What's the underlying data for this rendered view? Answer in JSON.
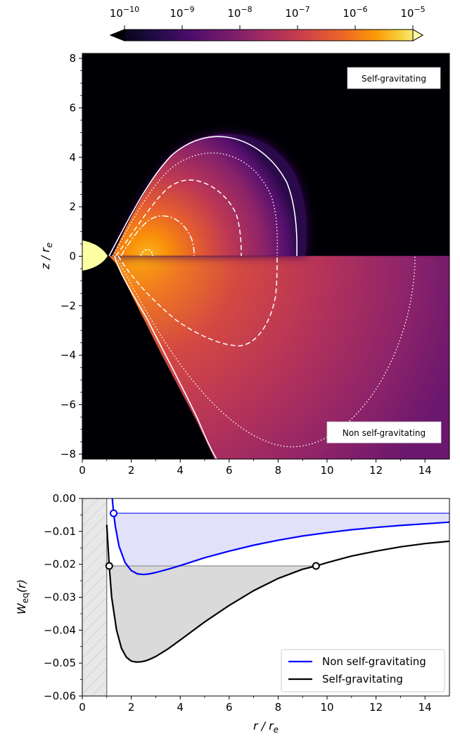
{
  "colors": {
    "background": "#ffffff",
    "dark": "#000004",
    "non_sg_line": "#0000ff",
    "non_sg_fill": "#dcdcf8",
    "sg_line": "#000000",
    "sg_fill": "#d6d6d6",
    "hatch_fill": "#e8e8e8",
    "contour": "#ffffff",
    "star": "#fcffa4"
  },
  "colorbar": {
    "scale": "log",
    "colormap": "inferno",
    "vmin": 1e-10,
    "vmax": 1e-05,
    "extend": "both",
    "orientation": "horizontal",
    "ticks": [
      {
        "base": "10",
        "exp": "−10"
      },
      {
        "base": "10",
        "exp": "−9"
      },
      {
        "base": "10",
        "exp": "−8"
      },
      {
        "base": "10",
        "exp": "−7"
      },
      {
        "base": "10",
        "exp": "−6"
      },
      {
        "base": "10",
        "exp": "−5"
      }
    ]
  },
  "chart_data": [
    {
      "type": "heatmap",
      "xlim": [
        0,
        15
      ],
      "ylim": [
        -8.2,
        8.2
      ],
      "ylabel": "z / r",
      "ylabel_sub": "e",
      "xticks": [
        "0",
        "2",
        "4",
        "6",
        "8",
        "10",
        "12",
        "14"
      ],
      "yticks": [
        "−8",
        "−6",
        "−4",
        "−2",
        "0",
        "2",
        "4",
        "6",
        "8"
      ],
      "grid": false,
      "upper_half_label": "Self-gravitating",
      "lower_half_label": "Non self-gravitating",
      "upper_torus": {
        "inner_edge": 1.1,
        "outer_edge": 8.75,
        "max_height": 4.87,
        "density_center": 2.7
      },
      "lower_torus": {
        "inner_edge": 1.2,
        "contour_outer": 8.0,
        "dotted_outer": 13.6
      }
    },
    {
      "type": "line",
      "xlim": [
        0,
        15
      ],
      "ylim": [
        -0.06,
        0.0
      ],
      "xlabel": "r / r",
      "xlabel_sub": "e",
      "ylabel": "W",
      "ylabel_sub": "eq",
      "ylabel_suffix": "(r)",
      "xticks": [
        "0",
        "2",
        "4",
        "6",
        "8",
        "10",
        "12",
        "14"
      ],
      "yticks": [
        "0.00",
        "−0.01",
        "−0.02",
        "−0.03",
        "−0.04",
        "−0.05",
        "−0.06"
      ],
      "excluded_region": [
        0,
        1
      ],
      "legend_placement": "lower-right",
      "series": [
        {
          "name": "Non self-gravitating",
          "x": [
            1.28,
            1.35,
            1.5,
            1.75,
            2.0,
            2.25,
            2.5,
            2.75,
            3.0,
            3.5,
            4.0,
            5.0,
            6.0,
            7.0,
            8.0,
            9.0,
            10.0,
            11.0,
            12.0,
            13.0,
            14.0,
            15.0
          ],
          "y": [
            -0.0045,
            -0.0085,
            -0.0145,
            -0.0195,
            -0.0219,
            -0.0229,
            -0.0231,
            -0.0229,
            -0.0225,
            -0.0215,
            -0.0204,
            -0.018,
            -0.016,
            -0.0142,
            -0.0127,
            -0.0114,
            -0.0104,
            -0.0095,
            -0.0088,
            -0.0082,
            -0.0077,
            -0.0072
          ],
          "level": -0.0045,
          "level_from_x": 1.28,
          "markers": [
            [
              1.28,
              -0.0045
            ]
          ]
        },
        {
          "name": "Self-gravitating",
          "x": [
            1.0,
            1.1,
            1.2,
            1.4,
            1.6,
            1.8,
            2.0,
            2.2,
            2.4,
            2.6,
            2.8,
            3.0,
            3.5,
            4.0,
            5.0,
            6.0,
            7.0,
            8.0,
            9.0,
            9.55,
            10.0,
            11.0,
            12.0,
            13.0,
            14.0,
            15.0
          ],
          "y": [
            -0.008,
            -0.0205,
            -0.03,
            -0.04,
            -0.0455,
            -0.0482,
            -0.0494,
            -0.0497,
            -0.0496,
            -0.0493,
            -0.0487,
            -0.048,
            -0.0457,
            -0.043,
            -0.0375,
            -0.0325,
            -0.028,
            -0.0243,
            -0.0215,
            -0.0205,
            -0.0195,
            -0.0175,
            -0.016,
            -0.0147,
            -0.0137,
            -0.013
          ],
          "level": -0.0205,
          "level_range": [
            1.1,
            9.55
          ],
          "markers": [
            [
              1.1,
              -0.0205
            ],
            [
              9.55,
              -0.0205
            ]
          ]
        }
      ]
    }
  ]
}
